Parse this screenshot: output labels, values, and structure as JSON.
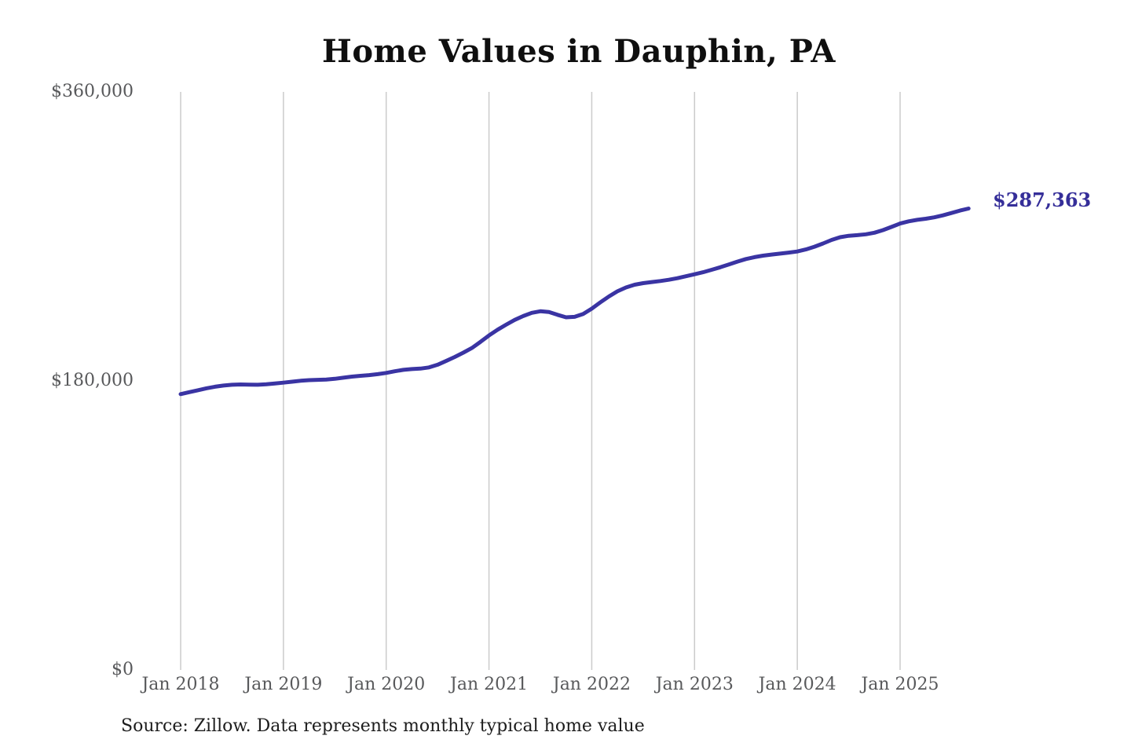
{
  "title": "Home Values in Dauphin, PA",
  "annotation": {
    "last_value": "$287,363"
  },
  "footer": {
    "source": "Source: Zillow. Data represents monthly typical home value"
  },
  "y_axis": {
    "ticks": [
      "$0",
      "$180,000",
      "$360,000"
    ]
  },
  "x_axis": {
    "ticks": [
      "Jan 2018",
      "Jan 2019",
      "Jan 2020",
      "Jan 2021",
      "Jan 2022",
      "Jan 2023",
      "Jan 2024",
      "Jan 2025"
    ]
  },
  "colors": {
    "line": "#3a34a3",
    "annotation": "#352e99",
    "grid": "#cbcbcb",
    "axis_text": "#58595b",
    "title_text": "#0f0f0f",
    "source_text": "#1d1d1d",
    "background": "#ffffff"
  },
  "chart_data": {
    "type": "line",
    "title": "Home Values in Dauphin, PA",
    "xlabel": "",
    "ylabel": "",
    "x_unit": "month",
    "x_start": "2018-01",
    "x_end": "2025-09",
    "ylim": [
      0,
      360000
    ],
    "y_tick_values": [
      0,
      180000,
      360000
    ],
    "y_tick_labels": [
      "$0",
      "$180,000",
      "$360,000"
    ],
    "x_tick_labels": [
      "Jan 2018",
      "Jan 2019",
      "Jan 2020",
      "Jan 2021",
      "Jan 2022",
      "Jan 2023",
      "Jan 2024",
      "Jan 2025"
    ],
    "grid": "vertical-only",
    "legend": "none",
    "last_point": {
      "x": "2025-09",
      "y": 287363,
      "label": "$287,363"
    },
    "series": [
      {
        "name": "Monthly typical home value",
        "values": [
          171800,
          173000,
          174200,
          175400,
          176400,
          177100,
          177600,
          177800,
          177700,
          177600,
          177900,
          178400,
          178900,
          179500,
          180100,
          180500,
          180700,
          180900,
          181300,
          182000,
          182700,
          183200,
          183600,
          184200,
          185000,
          186000,
          186900,
          187400,
          187700,
          188400,
          190100,
          192400,
          194900,
          197600,
          200500,
          204300,
          208300,
          211900,
          215000,
          218000,
          220400,
          222400,
          223400,
          222900,
          221200,
          219600,
          219900,
          221700,
          225000,
          228900,
          232600,
          235800,
          238200,
          239900,
          240900,
          241600,
          242200,
          243000,
          244000,
          245200,
          246400,
          247700,
          249200,
          250800,
          252500,
          254300,
          255900,
          257100,
          258000,
          258700,
          259300,
          259900,
          260600,
          261900,
          263600,
          265600,
          267800,
          269500,
          270400,
          270800,
          271300,
          272300,
          273900,
          275900,
          278000,
          279400,
          280300,
          281000,
          281900,
          283100,
          284600,
          286100,
          287363
        ]
      }
    ]
  }
}
